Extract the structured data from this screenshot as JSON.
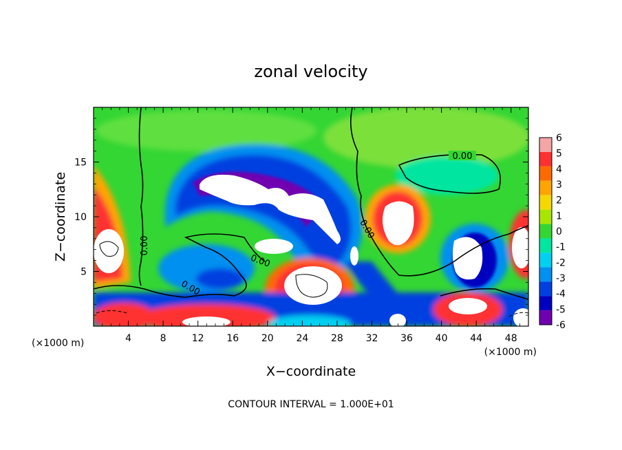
{
  "chart_data": {
    "type": "heatmap",
    "title": "zonal velocity",
    "xlabel": "X−coordinate",
    "ylabel": "Z−coordinate",
    "x_unit": "(×1000 m)",
    "y_unit": "(×1000 m)",
    "xlim": [
      0,
      50
    ],
    "ylim": [
      0,
      20
    ],
    "x_ticks": [
      4,
      8,
      12,
      16,
      20,
      24,
      28,
      32,
      36,
      40,
      44,
      48
    ],
    "y_ticks": [
      5,
      10,
      15
    ],
    "colorbar": {
      "levels": [
        6,
        5,
        4,
        3,
        2,
        1,
        0,
        -1,
        -2,
        -3,
        -4,
        -5,
        -6
      ],
      "colors": [
        "#f4a6a6",
        "#ff3030",
        "#ff6a00",
        "#ffa500",
        "#f5d800",
        "#a8e600",
        "#33d633",
        "#00e6a0",
        "#00d0f0",
        "#0090f0",
        "#0040e0",
        "#0000c0",
        "#7000b0"
      ]
    },
    "contour_labels": [
      "0.00",
      "0.00",
      "0.00",
      "0.00",
      "0.00"
    ],
    "footer": "CONTOUR INTERVAL = 1.000E+01",
    "colors": {
      "background": "#33d633",
      "light_green": "#7be03a",
      "cyan": "#00d0f0",
      "blue": "#0040e0",
      "purple": "#7000b0",
      "red": "#ff3030",
      "white": "#ffffff"
    }
  }
}
